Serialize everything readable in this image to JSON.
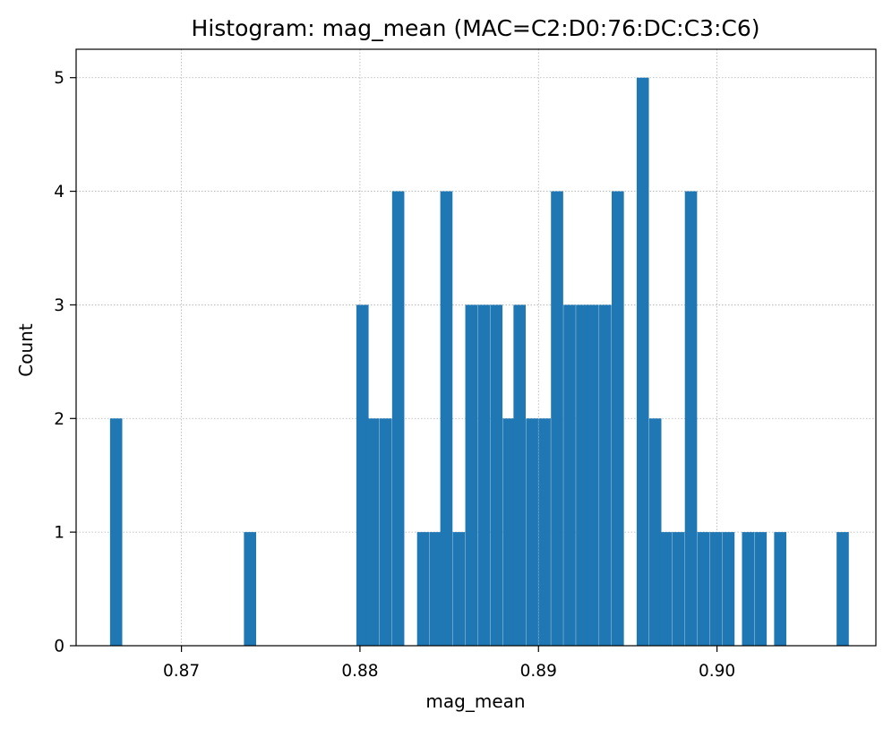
{
  "chart_data": {
    "type": "bar",
    "title": "Histogram: mag_mean (MAC=C2:D0:76:DC:C3:C6)",
    "xlabel": "mag_mean",
    "ylabel": "Count",
    "xlim": [
      0.8641,
      0.9089
    ],
    "ylim": [
      0,
      5.25
    ],
    "grid": true,
    "bin_width": 0.000684,
    "x_ticks": [
      "0.87",
      "0.88",
      "0.89",
      "0.90"
    ],
    "x_tick_values": [
      0.87,
      0.88,
      0.89,
      0.9
    ],
    "y_ticks": [
      "0",
      "1",
      "2",
      "3",
      "4",
      "5"
    ],
    "y_tick_values": [
      0,
      1,
      2,
      3,
      4,
      5
    ],
    "bins": [
      {
        "x": 0.866,
        "count": 2
      },
      {
        "x": 0.8735,
        "count": 1
      },
      {
        "x": 0.8798,
        "count": 3
      },
      {
        "x": 0.8804,
        "count": 2
      },
      {
        "x": 0.8811,
        "count": 2
      },
      {
        "x": 0.8818,
        "count": 4
      },
      {
        "x": 0.8825,
        "count": 0
      },
      {
        "x": 0.8832,
        "count": 1
      },
      {
        "x": 0.8839,
        "count": 1
      },
      {
        "x": 0.8845,
        "count": 4
      },
      {
        "x": 0.8852,
        "count": 1
      },
      {
        "x": 0.8859,
        "count": 3
      },
      {
        "x": 0.8866,
        "count": 3
      },
      {
        "x": 0.8873,
        "count": 3
      },
      {
        "x": 0.888,
        "count": 2
      },
      {
        "x": 0.8886,
        "count": 3
      },
      {
        "x": 0.8893,
        "count": 2
      },
      {
        "x": 0.89,
        "count": 2
      },
      {
        "x": 0.8907,
        "count": 4
      },
      {
        "x": 0.8914,
        "count": 3
      },
      {
        "x": 0.8921,
        "count": 3
      },
      {
        "x": 0.8927,
        "count": 3
      },
      {
        "x": 0.8934,
        "count": 3
      },
      {
        "x": 0.8941,
        "count": 4
      },
      {
        "x": 0.8948,
        "count": 0
      },
      {
        "x": 0.8955,
        "count": 5
      },
      {
        "x": 0.8962,
        "count": 2
      },
      {
        "x": 0.8968,
        "count": 1
      },
      {
        "x": 0.8975,
        "count": 1
      },
      {
        "x": 0.8982,
        "count": 4
      },
      {
        "x": 0.8989,
        "count": 1
      },
      {
        "x": 0.8996,
        "count": 1
      },
      {
        "x": 0.9003,
        "count": 1
      },
      {
        "x": 0.9014,
        "count": 1
      },
      {
        "x": 0.9021,
        "count": 1
      },
      {
        "x": 0.9032,
        "count": 1
      },
      {
        "x": 0.9067,
        "count": 1
      }
    ],
    "colors": {
      "bar": "#1f77b4",
      "grid": "#b0b0b0",
      "axis": "#000000"
    }
  }
}
